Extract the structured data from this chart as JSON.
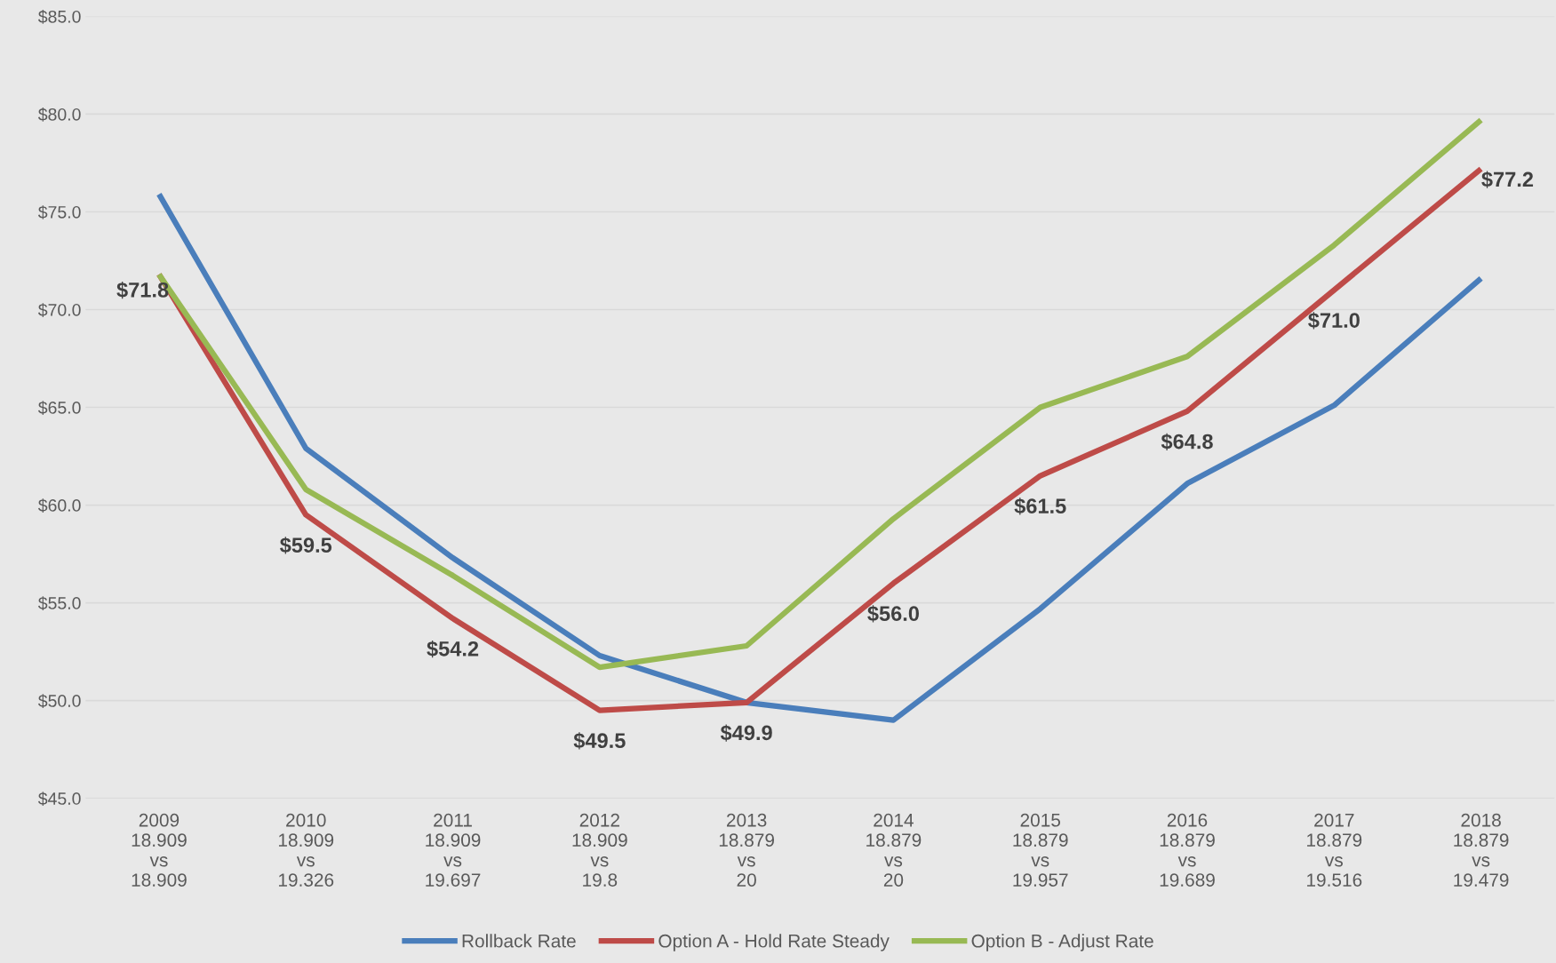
{
  "chart_data": {
    "type": "line",
    "categories": [
      "2009\n18.909\nvs\n18.909",
      "2010\n18.909\nvs\n19.326",
      "2011\n18.909\nvs\n19.697",
      "2012\n18.909\nvs\n19.8",
      "2013\n18.879\nvs\n20",
      "2014\n18.879\nvs\n20",
      "2015\n18.879\nvs\n19.957",
      "2016\n18.879\nvs\n19.689",
      "2017\n18.879\nvs\n19.516",
      "2018\n18.879\nvs\n19.479"
    ],
    "series": [
      {
        "name": "Rollback Rate",
        "color": "#4a7ebb",
        "values": [
          75.9,
          62.9,
          57.3,
          52.3,
          49.9,
          49.0,
          54.7,
          61.1,
          65.1,
          71.6
        ]
      },
      {
        "name": "Option A - Hold Rate Steady",
        "color": "#be4b48",
        "values": [
          71.8,
          59.5,
          54.2,
          49.5,
          49.9,
          56.0,
          61.5,
          64.8,
          71.0,
          77.2
        ],
        "value_labels": [
          "$71.8",
          "$59.5",
          "$54.2",
          "$49.5",
          "$49.9",
          "$56.0",
          "$61.5",
          "$64.8",
          "$71.0",
          "$77.2"
        ]
      },
      {
        "name": "Option B - Adjust Rate",
        "color": "#98b954",
        "values": [
          71.8,
          60.8,
          56.4,
          51.7,
          52.8,
          59.3,
          65.0,
          67.6,
          73.3,
          79.7
        ]
      }
    ],
    "ylim": [
      45,
      85
    ],
    "yticks": [
      {
        "value": 45,
        "label": "$45.0"
      },
      {
        "value": 50,
        "label": "$50.0"
      },
      {
        "value": 55,
        "label": "$55.0"
      },
      {
        "value": 60,
        "label": "$60.0"
      },
      {
        "value": 65,
        "label": "$65.0"
      },
      {
        "value": 70,
        "label": "$70.0"
      },
      {
        "value": 75,
        "label": "$75.0"
      },
      {
        "value": 80,
        "label": "$80.0"
      },
      {
        "value": 85,
        "label": "$85.0"
      }
    ],
    "grid": "y",
    "legend": "bottom",
    "marker": "none",
    "line_style": "solid"
  }
}
